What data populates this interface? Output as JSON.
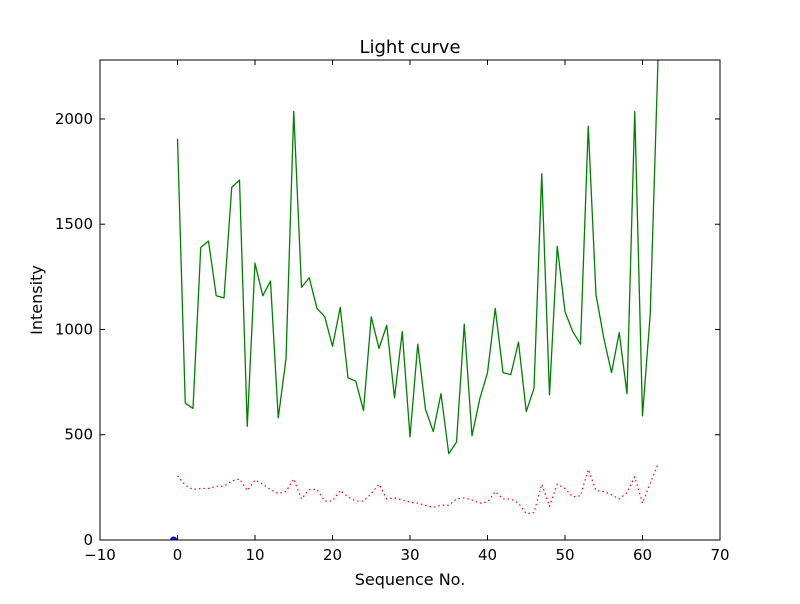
{
  "colors": {
    "background": "#ffffff",
    "axis": "#000000",
    "series_green": "#008000",
    "series_red": "#ff0000",
    "series_blue": "#0000ff"
  },
  "chart_data": {
    "type": "line",
    "title": "Light curve",
    "xlabel": "Sequence No.",
    "ylabel": "Intensity",
    "xlim": [
      -10,
      70
    ],
    "ylim": [
      0,
      2280
    ],
    "xticks": [
      -10,
      0,
      10,
      20,
      30,
      40,
      50,
      60,
      70
    ],
    "yticks": [
      0,
      500,
      1000,
      1500,
      2000
    ],
    "xtick_labels": [
      "−10",
      "0",
      "10",
      "20",
      "30",
      "40",
      "50",
      "60",
      "70"
    ],
    "ytick_labels": [
      "0",
      "500",
      "1000",
      "1500",
      "2000"
    ],
    "grid": false,
    "series": [
      {
        "style": "solid",
        "color": "#008000",
        "x": [
          0,
          1,
          2,
          3,
          4,
          5,
          6,
          7,
          8,
          9,
          10,
          11,
          12,
          13,
          14,
          15,
          16,
          17,
          18,
          19,
          20,
          21,
          22,
          23,
          24,
          25,
          26,
          27,
          28,
          29,
          30,
          31,
          32,
          33,
          34,
          35,
          36,
          37,
          38,
          39,
          40,
          41,
          42,
          43,
          44,
          45,
          46,
          47,
          48,
          49,
          50,
          51,
          52,
          53,
          54,
          55,
          56,
          57,
          58,
          59,
          60,
          61,
          62
        ],
        "values": [
          1905,
          650,
          625,
          1390,
          1420,
          1160,
          1150,
          1675,
          1710,
          540,
          1315,
          1160,
          1230,
          580,
          860,
          2035,
          1200,
          1245,
          1100,
          1060,
          920,
          1105,
          770,
          755,
          615,
          1060,
          910,
          1020,
          675,
          990,
          490,
          930,
          620,
          515,
          695,
          410,
          465,
          1025,
          495,
          670,
          795,
          1100,
          795,
          785,
          940,
          610,
          720,
          1740,
          690,
          1395,
          1085,
          990,
          930,
          1965,
          1165,
          960,
          795,
          985,
          695,
          2035,
          590,
          1075,
          2280
        ]
      },
      {
        "style": "dotted",
        "color": "#ff0000",
        "x": [
          0,
          1,
          2,
          3,
          4,
          5,
          6,
          7,
          8,
          9,
          10,
          11,
          12,
          13,
          14,
          15,
          16,
          17,
          18,
          19,
          20,
          21,
          22,
          23,
          24,
          25,
          26,
          27,
          28,
          29,
          30,
          31,
          32,
          33,
          34,
          35,
          36,
          37,
          38,
          39,
          40,
          41,
          42,
          43,
          44,
          45,
          46,
          47,
          48,
          49,
          50,
          51,
          52,
          53,
          54,
          55,
          56,
          57,
          58,
          59,
          60,
          61,
          62
        ],
        "values": [
          305,
          260,
          240,
          245,
          245,
          255,
          255,
          280,
          290,
          235,
          285,
          265,
          240,
          220,
          230,
          290,
          195,
          240,
          240,
          185,
          185,
          235,
          205,
          185,
          185,
          220,
          265,
          195,
          200,
          190,
          180,
          175,
          165,
          155,
          165,
          165,
          195,
          200,
          190,
          175,
          180,
          230,
          195,
          195,
          175,
          125,
          130,
          265,
          160,
          265,
          245,
          205,
          210,
          335,
          235,
          230,
          215,
          195,
          225,
          300,
          175,
          270,
          360
        ]
      },
      {
        "style": "marker",
        "color": "#0000ff",
        "x": [
          -0.5
        ],
        "values": [
          0
        ]
      }
    ]
  }
}
